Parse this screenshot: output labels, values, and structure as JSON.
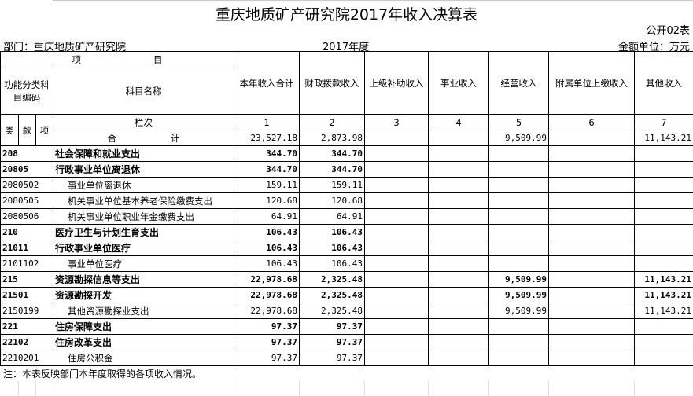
{
  "title": "重庆地质矿产研究院2017年收入决算表",
  "table_no": "公开02表",
  "department": "部门：重庆地质矿产研究院",
  "year": "2017年度",
  "unit": "金额单位：万元",
  "header": {
    "item": "项　　　　　　　　目",
    "func_code": "功能分类科目编码",
    "subject_name": "科目名称",
    "columns": [
      "本年收入合计",
      "财政拨款收入",
      "上级补助收入",
      "事业收入",
      "经营收入",
      "附属单位上缴收入",
      "其他收入"
    ],
    "lei": "类",
    "kuan": "款",
    "xiang": "项",
    "lanci": "栏次",
    "col_numbers": [
      "1",
      "2",
      "3",
      "4",
      "5",
      "6",
      "7"
    ],
    "total_label": "合　　　　　　计",
    "total_values": [
      "23,527.18",
      "2,873.98",
      "",
      "",
      "9,509.99",
      "",
      "11,143.21"
    ]
  },
  "rows": [
    {
      "code": "208",
      "name": "社会保障和就业支出",
      "bold": true,
      "values": [
        "344.70",
        "344.70",
        "",
        "",
        "",
        "",
        ""
      ]
    },
    {
      "code": "20805",
      "name": "行政事业单位离退休",
      "bold": true,
      "values": [
        "344.70",
        "344.70",
        "",
        "",
        "",
        "",
        ""
      ]
    },
    {
      "code": "2080502",
      "name": "事业单位离退休",
      "bold": false,
      "values": [
        "159.11",
        "159.11",
        "",
        "",
        "",
        "",
        ""
      ]
    },
    {
      "code": "2080505",
      "name": "机关事业单位基本养老保险缴费支出",
      "bold": false,
      "values": [
        "120.68",
        "120.68",
        "",
        "",
        "",
        "",
        ""
      ]
    },
    {
      "code": "2080506",
      "name": "机关事业单位职业年金缴费支出",
      "bold": false,
      "values": [
        "64.91",
        "64.91",
        "",
        "",
        "",
        "",
        ""
      ]
    },
    {
      "code": "210",
      "name": "医疗卫生与计划生育支出",
      "bold": true,
      "values": [
        "106.43",
        "106.43",
        "",
        "",
        "",
        "",
        ""
      ]
    },
    {
      "code": "21011",
      "name": "行政事业单位医疗",
      "bold": true,
      "values": [
        "106.43",
        "106.43",
        "",
        "",
        "",
        "",
        ""
      ]
    },
    {
      "code": "2101102",
      "name": "事业单位医疗",
      "bold": false,
      "values": [
        "106.43",
        "106.43",
        "",
        "",
        "",
        "",
        ""
      ]
    },
    {
      "code": "215",
      "name": "资源勘探信息等支出",
      "bold": true,
      "values": [
        "22,978.68",
        "2,325.48",
        "",
        "",
        "9,509.99",
        "",
        "11,143.21"
      ]
    },
    {
      "code": "21501",
      "name": "资源勘探开发",
      "bold": true,
      "values": [
        "22,978.68",
        "2,325.48",
        "",
        "",
        "9,509.99",
        "",
        "11,143.21"
      ]
    },
    {
      "code": "2150199",
      "name": "其他资源勘探业支出",
      "bold": false,
      "values": [
        "22,978.68",
        "2,325.48",
        "",
        "",
        "9,509.99",
        "",
        "11,143.21"
      ]
    },
    {
      "code": "221",
      "name": "住房保障支出",
      "bold": true,
      "values": [
        "97.37",
        "97.37",
        "",
        "",
        "",
        "",
        ""
      ]
    },
    {
      "code": "22102",
      "name": "住房改革支出",
      "bold": true,
      "values": [
        "97.37",
        "97.37",
        "",
        "",
        "",
        "",
        ""
      ]
    },
    {
      "code": "2210201",
      "name": "住房公积金",
      "bold": false,
      "values": [
        "97.37",
        "97.37",
        "",
        "",
        "",
        "",
        ""
      ]
    }
  ],
  "note": "注：本表反映部门本年度取得的各项收入情况。"
}
